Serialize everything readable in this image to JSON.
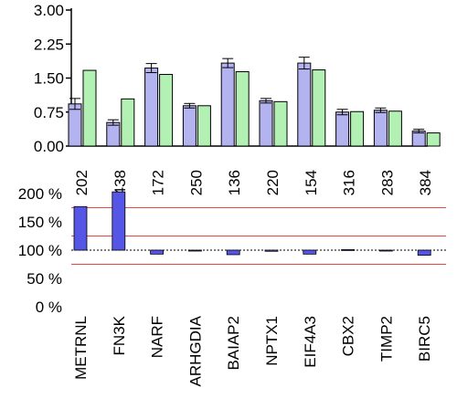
{
  "chart_data": [
    {
      "type": "bar",
      "title": "",
      "xlabel": "",
      "ylabel": "",
      "ylim": [
        0,
        3.0
      ],
      "yticks": [
        "0.00",
        "0.75",
        "1.50",
        "2.25",
        "3.00"
      ],
      "categories": [
        "METRNL",
        "FN3K",
        "NARF",
        "ARHGDIA",
        "BAIAP2",
        "NPTX1",
        "EIF4A3",
        "CBX2",
        "TIMP2",
        "BIRC5"
      ],
      "count_labels": [
        "202",
        "438",
        "172",
        "250",
        "136",
        "220",
        "154",
        "316",
        "283",
        "384"
      ],
      "grid": false,
      "legend": "none",
      "series": [
        {
          "color": "#b3b3f0",
          "values": [
            0.93,
            0.52,
            1.72,
            0.89,
            1.83,
            1.0,
            1.83,
            0.75,
            0.79,
            0.33
          ],
          "errors": [
            0.12,
            0.06,
            0.1,
            0.05,
            0.1,
            0.05,
            0.13,
            0.06,
            0.05,
            0.04
          ]
        },
        {
          "color": "#b3f0b3",
          "values": [
            1.67,
            1.04,
            1.58,
            0.89,
            1.64,
            0.98,
            1.68,
            0.76,
            0.77,
            0.29
          ]
        }
      ]
    },
    {
      "type": "bar",
      "title": "",
      "xlabel": "",
      "ylabel": "",
      "ylim": [
        0,
        200
      ],
      "yticks": [
        "0 %",
        "50 %",
        "100 %",
        "150 %",
        "200 %"
      ],
      "categories": [
        "METRNL",
        "FN3K",
        "NARF",
        "ARHGDIA",
        "BAIAP2",
        "NPTX1",
        "EIF4A3",
        "CBX2",
        "TIMP2",
        "BIRC5"
      ],
      "baseline": 100,
      "threshold_lines": [
        75,
        125,
        175
      ],
      "bar_color": "#5555e6",
      "line_color": "#e64a3c",
      "values": [
        177,
        203,
        93,
        100,
        92,
        98,
        93,
        101,
        100,
        91
      ]
    }
  ]
}
